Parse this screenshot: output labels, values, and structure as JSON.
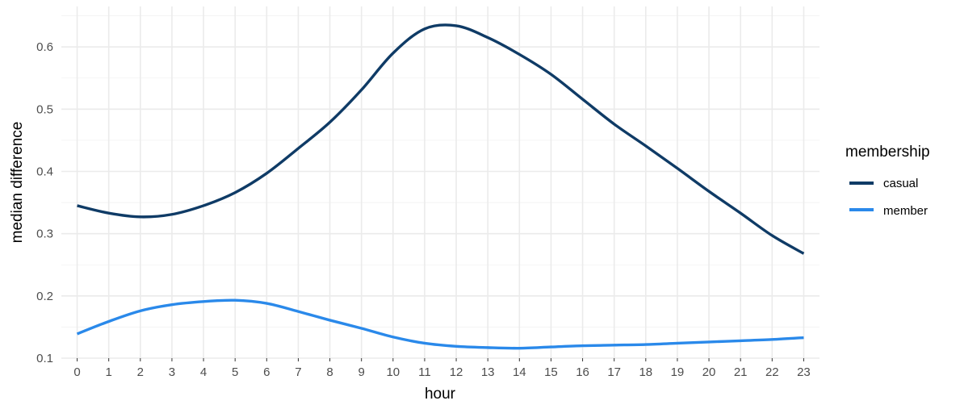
{
  "chart_data": {
    "type": "line",
    "title": "",
    "xlabel": "hour",
    "ylabel": "median difference",
    "x": [
      0,
      1,
      2,
      3,
      4,
      5,
      6,
      7,
      8,
      9,
      10,
      11,
      12,
      13,
      14,
      15,
      16,
      17,
      18,
      19,
      20,
      21,
      22,
      23
    ],
    "xlim": [
      -0.5,
      23.5
    ],
    "ylim": [
      0.1,
      0.665
    ],
    "yticks": [
      0.1,
      0.2,
      0.3,
      0.4,
      0.5,
      0.6
    ],
    "ytick_labels": [
      "0.1",
      "0.2",
      "0.3",
      "0.4",
      "0.5",
      "0.6"
    ],
    "grid": true,
    "legend": {
      "title": "membership",
      "position": "right"
    },
    "series": [
      {
        "name": "casual",
        "color": "#0f3b66",
        "values": [
          0.345,
          0.333,
          0.327,
          0.331,
          0.345,
          0.366,
          0.397,
          0.437,
          0.479,
          0.531,
          0.59,
          0.629,
          0.634,
          0.615,
          0.588,
          0.556,
          0.516,
          0.476,
          0.441,
          0.405,
          0.368,
          0.333,
          0.297,
          0.268
        ]
      },
      {
        "name": "member",
        "color": "#2a89ea",
        "values": [
          0.139,
          0.159,
          0.176,
          0.186,
          0.191,
          0.193,
          0.188,
          0.175,
          0.161,
          0.148,
          0.134,
          0.124,
          0.119,
          0.117,
          0.116,
          0.118,
          0.12,
          0.121,
          0.122,
          0.124,
          0.126,
          0.128,
          0.13,
          0.133
        ]
      }
    ]
  }
}
